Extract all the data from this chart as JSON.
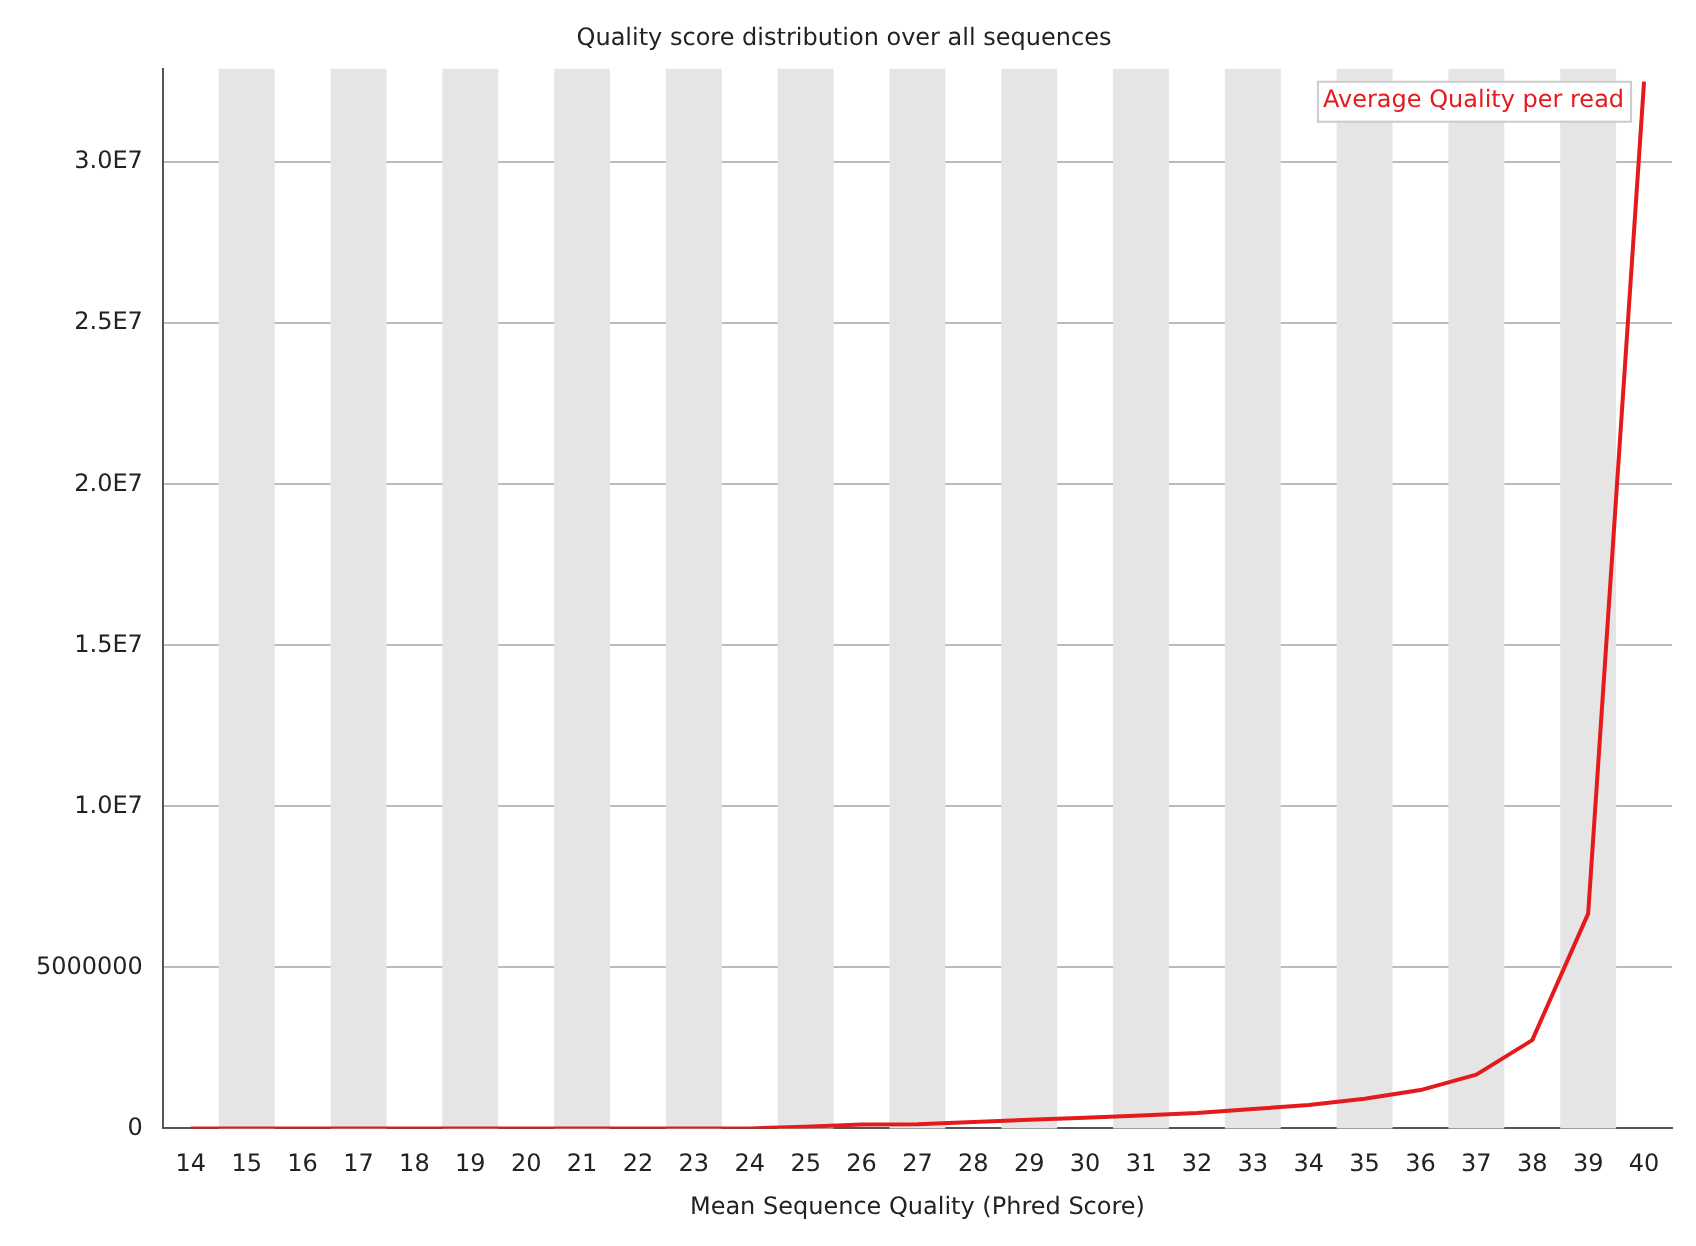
{
  "chart_data": {
    "type": "line",
    "title": "Quality score distribution over all sequences",
    "xlabel": "Mean Sequence Quality (Phred Score)",
    "categories": [
      "14",
      "15",
      "16",
      "17",
      "18",
      "19",
      "20",
      "21",
      "22",
      "23",
      "24",
      "25",
      "26",
      "27",
      "28",
      "29",
      "30",
      "31",
      "32",
      "33",
      "34",
      "35",
      "36",
      "37",
      "38",
      "39",
      "40"
    ],
    "series": [
      {
        "name": "Average Quality per read",
        "color": "#e41a1c",
        "values": [
          0,
          0,
          0,
          0,
          0,
          0,
          0,
          0,
          0,
          0,
          0,
          50000,
          120000,
          130000,
          200000,
          270000,
          330000,
          400000,
          480000,
          600000,
          730000,
          920000,
          1190000,
          1670000,
          2740000,
          6670000,
          32500000
        ]
      }
    ],
    "ylim": [
      0,
      32900000
    ],
    "yticks": [
      0,
      {
        "value": 5000000,
        "label": "5000000"
      },
      {
        "value": 10000000,
        "label": "1.0E7"
      },
      {
        "value": 15000000,
        "label": "1.5E7"
      },
      {
        "value": 20000000,
        "label": "2.0E7"
      },
      {
        "value": 25000000,
        "label": "2.5E7"
      },
      {
        "value": 30000000,
        "label": "3.0E7"
      }
    ],
    "grid": "y",
    "legend": "top right",
    "marker": "none",
    "line_style": "solid",
    "bands": [
      {
        "axis": "x",
        "from": "15",
        "to": "15",
        "color": "#e5e5e5"
      },
      {
        "axis": "x",
        "from": "17",
        "to": "17",
        "color": "#e5e5e5"
      },
      {
        "axis": "x",
        "from": "19",
        "to": "19",
        "color": "#e5e5e5"
      },
      {
        "axis": "x",
        "from": "21",
        "to": "21",
        "color": "#e5e5e5"
      },
      {
        "axis": "x",
        "from": "23",
        "to": "23",
        "color": "#e5e5e5"
      },
      {
        "axis": "x",
        "from": "25",
        "to": "25",
        "color": "#e5e5e5"
      },
      {
        "axis": "x",
        "from": "27",
        "to": "27",
        "color": "#e5e5e5"
      },
      {
        "axis": "x",
        "from": "29",
        "to": "29",
        "color": "#e5e5e5"
      },
      {
        "axis": "x",
        "from": "31",
        "to": "31",
        "color": "#e5e5e5"
      },
      {
        "axis": "x",
        "from": "33",
        "to": "33",
        "color": "#e5e5e5"
      },
      {
        "axis": "x",
        "from": "35",
        "to": "35",
        "color": "#e5e5e5"
      },
      {
        "axis": "x",
        "from": "37",
        "to": "37",
        "color": "#e5e5e5"
      },
      {
        "axis": "x",
        "from": "39",
        "to": "39",
        "color": "#e5e5e5"
      }
    ]
  }
}
